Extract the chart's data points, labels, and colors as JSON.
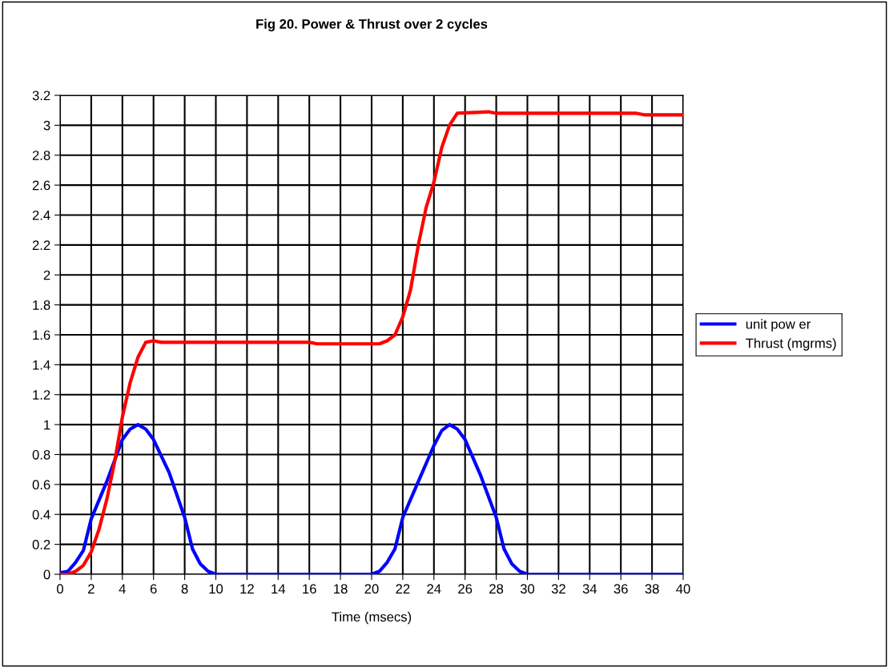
{
  "chart_data": {
    "type": "line",
    "title": "Fig 20. Power & Thrust over 2 cycles",
    "xlabel": "Time (msecs)",
    "xlim": [
      0,
      40
    ],
    "xticks": [
      0,
      2,
      4,
      6,
      8,
      10,
      12,
      14,
      16,
      18,
      20,
      22,
      24,
      26,
      28,
      30,
      32,
      34,
      36,
      38,
      40
    ],
    "ylim": [
      0,
      3.2
    ],
    "yticks": [
      0,
      0.2,
      0.4,
      0.6,
      0.8,
      1,
      1.2,
      1.4,
      1.6,
      1.8,
      2,
      2.2,
      2.4,
      2.6,
      2.8,
      3,
      3.2
    ],
    "grid": true,
    "legend": "right",
    "marker": "none",
    "line_style": "solid",
    "series": [
      {
        "name": "unit pow er",
        "color": "#0000ff",
        "x": [
          0,
          0.5,
          1,
          1.5,
          2,
          3,
          4,
          4.5,
          5,
          5.5,
          6,
          7,
          8,
          8.5,
          9,
          9.5,
          10,
          20,
          20.5,
          21,
          21.5,
          22,
          23,
          24,
          24.5,
          25,
          25.5,
          26,
          27,
          28,
          28.5,
          29,
          29.5,
          30,
          40
        ],
        "values": [
          0.01,
          0.02,
          0.08,
          0.16,
          0.37,
          0.62,
          0.9,
          0.97,
          1.0,
          0.97,
          0.9,
          0.68,
          0.38,
          0.17,
          0.07,
          0.02,
          0,
          0,
          0.02,
          0.08,
          0.17,
          0.38,
          0.62,
          0.86,
          0.96,
          1.0,
          0.97,
          0.9,
          0.66,
          0.38,
          0.17,
          0.07,
          0.02,
          0,
          0
        ]
      },
      {
        "name": "Thrust (mgrms)",
        "color": "#ff0000",
        "x": [
          0,
          0.5,
          1,
          1.5,
          2,
          2.5,
          3,
          3.5,
          4,
          4.5,
          5,
          5.5,
          6,
          6.5,
          16,
          16.5,
          20.5,
          21,
          21.5,
          22,
          22.5,
          23,
          23.5,
          24,
          24.5,
          25,
          25.5,
          27.5,
          28,
          37,
          37.5,
          40
        ],
        "values": [
          0,
          0,
          0.02,
          0.06,
          0.15,
          0.3,
          0.5,
          0.75,
          1.05,
          1.28,
          1.45,
          1.55,
          1.56,
          1.55,
          1.55,
          1.54,
          1.54,
          1.56,
          1.6,
          1.72,
          1.9,
          2.2,
          2.45,
          2.62,
          2.85,
          3.0,
          3.08,
          3.09,
          3.08,
          3.08,
          3.07,
          3.07
        ]
      }
    ]
  }
}
